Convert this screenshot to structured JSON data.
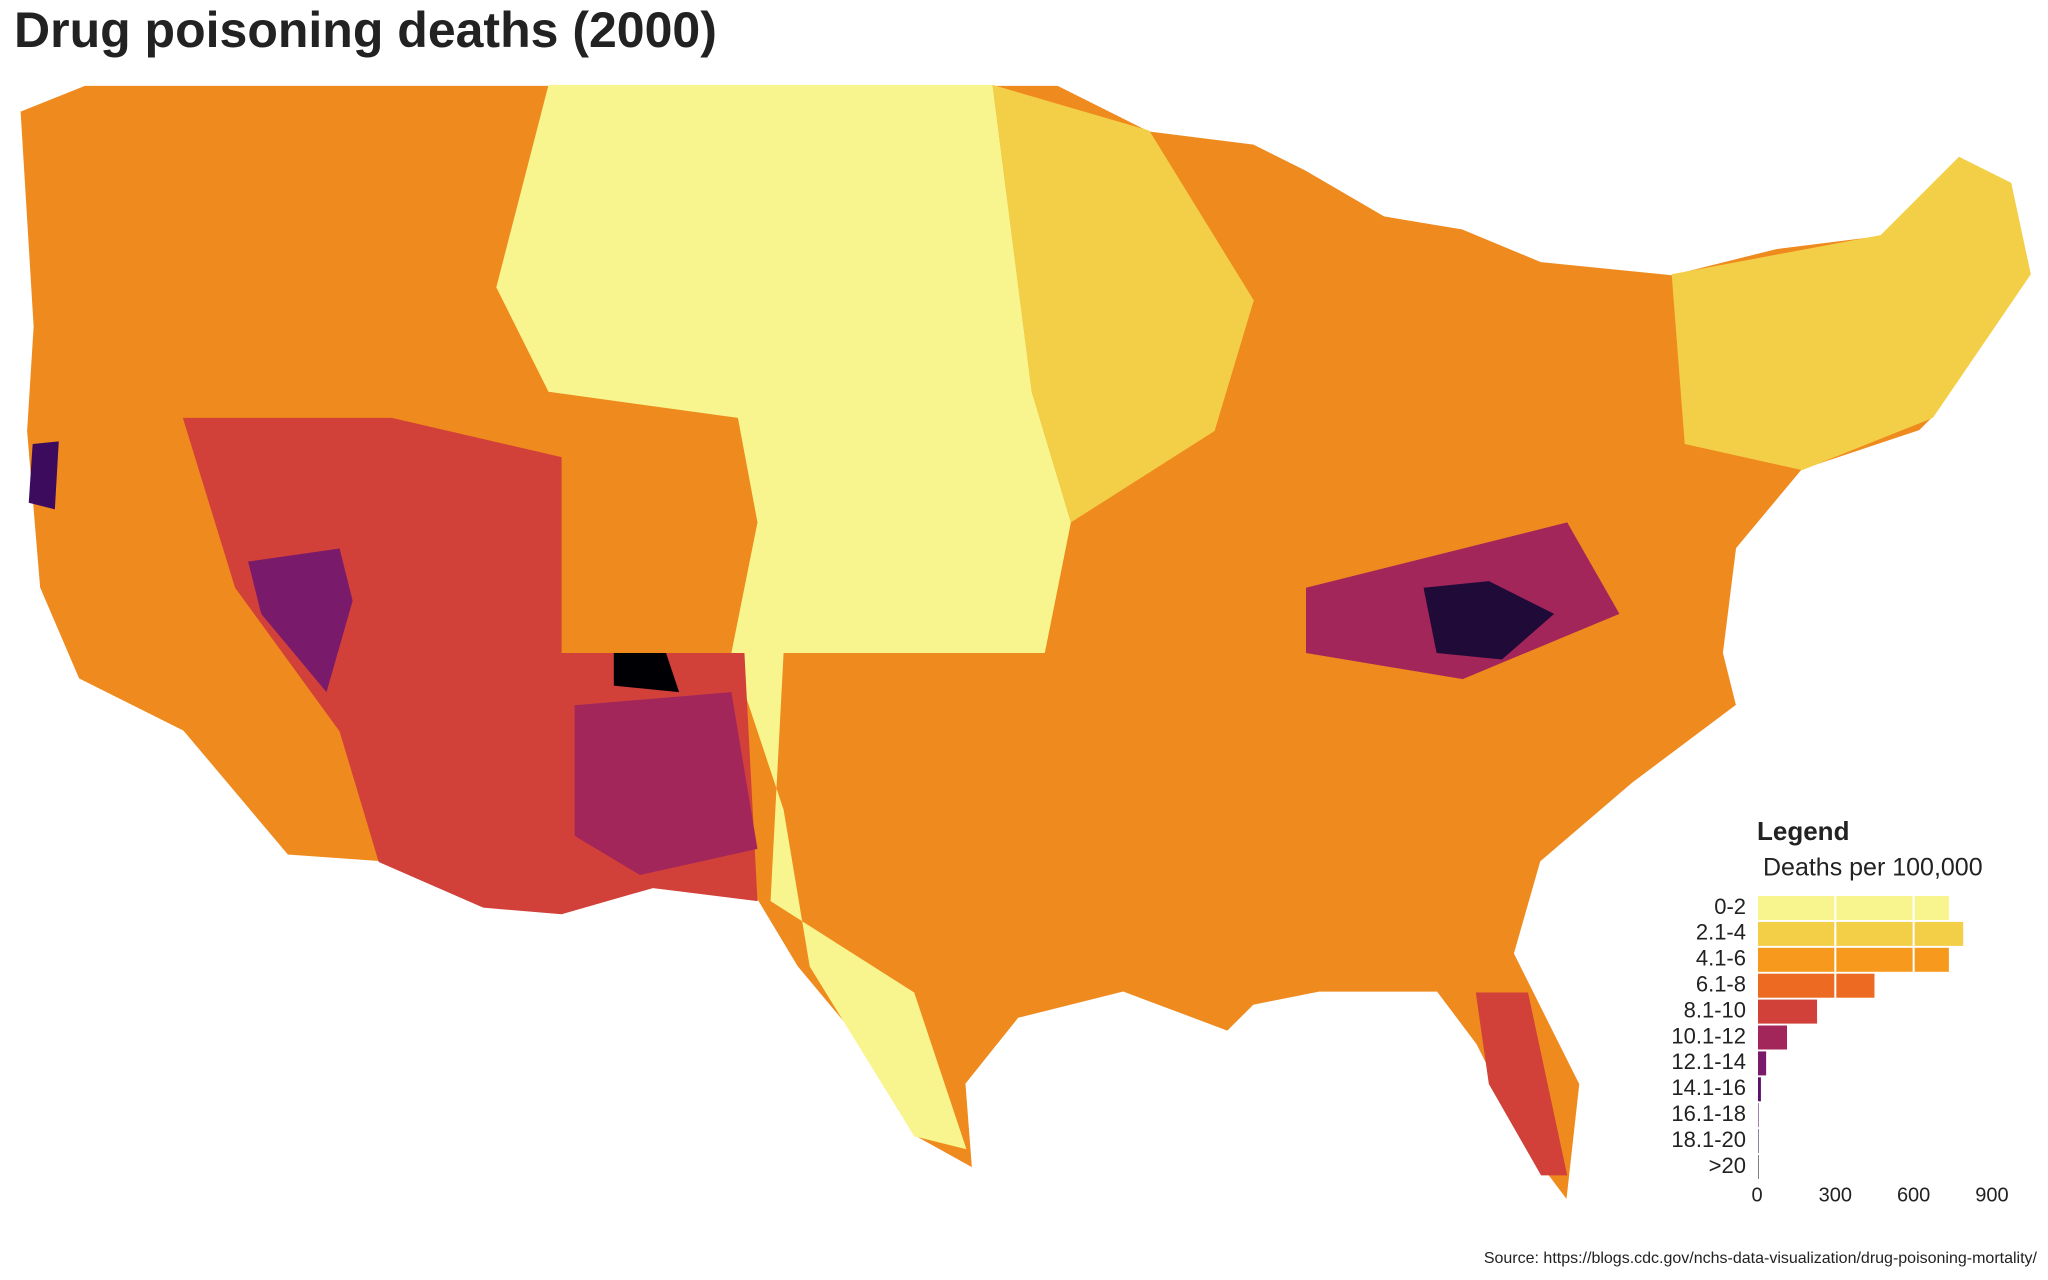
{
  "chart_data": {
    "type": "choropleth",
    "title": "Drug poisoning deaths (2000)",
    "legend_title": "Legend",
    "legend_subtitle": "Deaths per 100,000",
    "categories": [
      "0-2",
      "2.1-4",
      "4.1-6",
      "6.1-8",
      "8.1-10",
      "10.1-12",
      "12.1-14",
      "14.1-16",
      "16.1-18",
      "18.1-20",
      ">20"
    ],
    "values": [
      735,
      790,
      735,
      450,
      230,
      115,
      35,
      15,
      5,
      3,
      2
    ],
    "colors": [
      "#f8f58e",
      "#f3cf48",
      "#f7991c",
      "#ec6a21",
      "#d2403a",
      "#a2265a",
      "#7a1a6a",
      "#5a116c",
      "#3c0b5e",
      "#1f0a38",
      "#000004"
    ],
    "xlim": [
      0,
      950
    ],
    "xticks": [
      0,
      300,
      600,
      900
    ],
    "grid": true,
    "source": "Source: https://blogs.cdc.gov/nchs-data-visualization/drug-poisoning-mortality/"
  }
}
